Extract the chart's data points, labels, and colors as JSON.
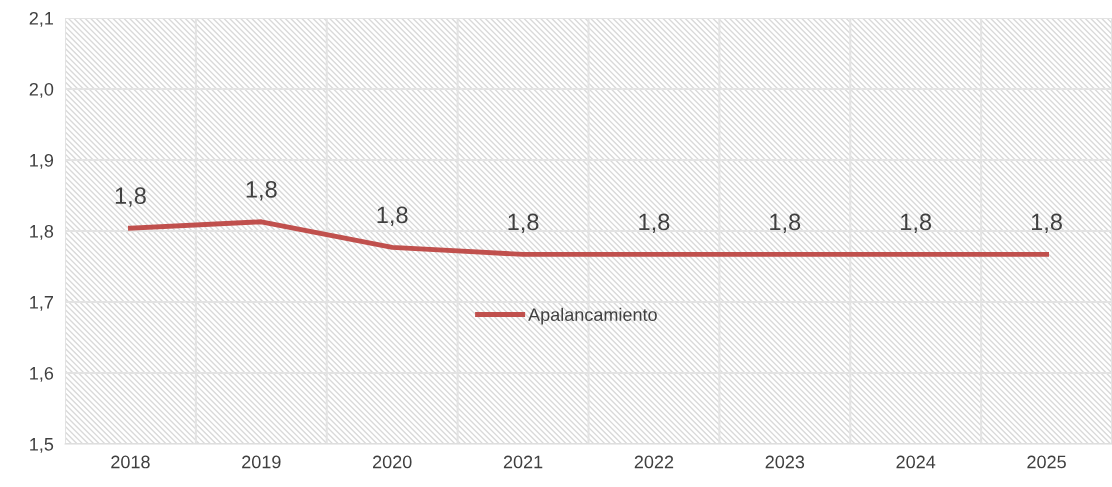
{
  "chart_data": {
    "type": "line",
    "categories": [
      "2018",
      "2019",
      "2020",
      "2021",
      "2022",
      "2023",
      "2024",
      "2025"
    ],
    "series": [
      {
        "name": "Apalancamiento",
        "color": "#c0504d",
        "values": [
          1.804,
          1.813,
          1.777,
          1.767,
          1.767,
          1.767,
          1.767,
          1.767
        ],
        "value_labels": [
          "1,8",
          "1,8",
          "1,8",
          "1,8",
          "1,8",
          "1,8",
          "1,8",
          "1,8"
        ]
      }
    ],
    "ylim": [
      1.5,
      2.1
    ],
    "yticks": [
      {
        "value": 1.5,
        "label": "1,5"
      },
      {
        "value": 1.6,
        "label": "1,6"
      },
      {
        "value": 1.7,
        "label": "1,7"
      },
      {
        "value": 1.8,
        "label": "1,8"
      },
      {
        "value": 1.9,
        "label": "1,9"
      },
      {
        "value": 2.0,
        "label": "2,0"
      },
      {
        "value": 2.1,
        "label": "2,1"
      }
    ],
    "grid": true,
    "legend": "center",
    "marker": "none",
    "line_style": "solid"
  }
}
